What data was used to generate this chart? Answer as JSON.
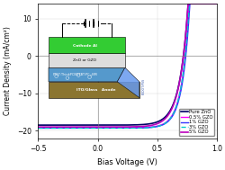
{
  "title": "",
  "xlabel": "Bias Voltage (V)",
  "ylabel": "Current Density (mA/cm²)",
  "xlim": [
    -0.5,
    1.0
  ],
  "ylim": [
    -22,
    14
  ],
  "xticks": [
    -0.5,
    0.0,
    0.5,
    1.0
  ],
  "yticks": [
    -20,
    -10,
    0,
    10
  ],
  "series": [
    {
      "label": "Pure ZnO",
      "color": "#000066",
      "lw": 1.2,
      "Jsc": -18.5,
      "Voc": 0.72,
      "n": 14,
      "style": "-"
    },
    {
      "label": "0.5% GZO",
      "color": "#FF00FF",
      "lw": 1.0,
      "Jsc": -19.2,
      "Voc": 0.735,
      "n": 16,
      "style": "-"
    },
    {
      "label": "1% GZO",
      "color": "#3333FF",
      "lw": 1.0,
      "Jsc": -19.3,
      "Voc": 0.74,
      "n": 16,
      "style": "-"
    },
    {
      "label": "3% GZO",
      "color": "#00CCCC",
      "lw": 1.0,
      "Jsc": -19.3,
      "Voc": 0.735,
      "n": 16,
      "style": "--"
    },
    {
      "label": "5% GZO",
      "color": "#BB00BB",
      "lw": 1.2,
      "Jsc": -19.0,
      "Voc": 0.72,
      "n": 14,
      "style": "-"
    }
  ],
  "background_color": "#ffffff",
  "inset": {
    "cathode_color": "#33CC33",
    "zno_color": "#DDDDDD",
    "active_color": "#5599CC",
    "ito_color": "#8B7530",
    "pedot_color": "#6699EE",
    "wire_color": "#222222"
  }
}
